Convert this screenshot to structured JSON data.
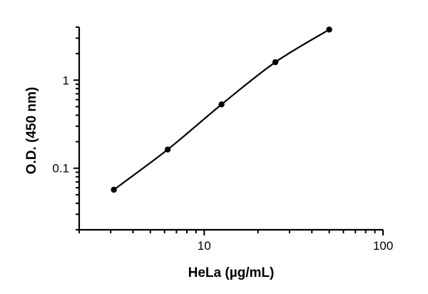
{
  "chart_data": {
    "type": "scatter",
    "title": "",
    "xlabel": "HeLa (µg/mL)",
    "ylabel": "O.D. (450 nm)",
    "x_scale": "log",
    "y_scale": "log",
    "xlim": [
      2,
      100
    ],
    "ylim": [
      0.02,
      4
    ],
    "x_tick_labels": [
      {
        "value": 10,
        "label": "10"
      },
      {
        "value": 100,
        "label": "100"
      }
    ],
    "y_tick_labels": [
      {
        "value": 0.1,
        "label": "0.1"
      },
      {
        "value": 1,
        "label": "1"
      }
    ],
    "grid": false,
    "legend": "none",
    "fit_curve": true,
    "series": [
      {
        "x": [
          3.125,
          6.25,
          12.5,
          25,
          50
        ],
        "y": [
          0.057,
          0.163,
          0.53,
          1.6,
          3.75
        ]
      }
    ]
  }
}
